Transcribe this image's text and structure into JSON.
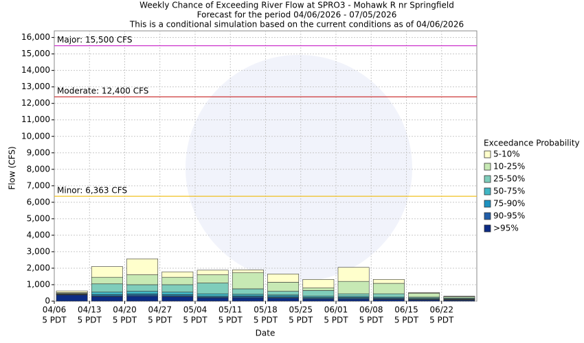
{
  "chart_data": {
    "type": "stacked_bar",
    "title": [
      "Weekly Chance of Exceeding River Flow at SPRO3 - Mohawk R nr Springfield",
      "Forecast for the period 04/06/2026 - 07/05/2026",
      "This is a conditional simulation based on the current conditions as of 04/06/2026"
    ],
    "xlabel": "Date",
    "ylabel": "Flow (CFS)",
    "categories": [
      "04/06",
      "04/13",
      "04/20",
      "04/27",
      "05/04",
      "05/11",
      "05/18",
      "05/25",
      "06/01",
      "06/08",
      "06/15",
      "06/22"
    ],
    "category_time": "5 PDT",
    "legend_title": "Exceedance Probability",
    "series": [
      {
        "name": ">95%",
        "color": "#0c2c84",
        "values": [
          380,
          280,
          300,
          270,
          200,
          200,
          180,
          130,
          130,
          110,
          80,
          60
        ]
      },
      {
        "name": "90-95%",
        "color": "#225ea8",
        "values": [
          20,
          50,
          80,
          60,
          50,
          60,
          50,
          50,
          50,
          40,
          30,
          30
        ]
      },
      {
        "name": "75-90%",
        "color": "#1d91c0",
        "values": [
          20,
          70,
          70,
          70,
          50,
          60,
          70,
          40,
          50,
          50,
          30,
          30
        ]
      },
      {
        "name": "50-75%",
        "color": "#41b6c4",
        "values": [
          20,
          150,
          150,
          150,
          150,
          100,
          80,
          80,
          70,
          50,
          40,
          30
        ]
      },
      {
        "name": "25-50%",
        "color": "#7fcdbb",
        "values": [
          30,
          500,
          400,
          450,
          650,
          330,
          220,
          350,
          150,
          200,
          70,
          50
        ]
      },
      {
        "name": "10-25%",
        "color": "#c7e9b4",
        "values": [
          50,
          400,
          600,
          450,
          500,
          970,
          550,
          150,
          750,
          630,
          230,
          70
        ]
      },
      {
        "name": "5-10%",
        "color": "#ffffcc",
        "values": [
          100,
          650,
          970,
          330,
          280,
          180,
          500,
          520,
          850,
          240,
          40,
          30
        ]
      }
    ],
    "thresholds": [
      {
        "label": "Major: 15,500 CFS",
        "value": 15500,
        "color": "#cc33cc"
      },
      {
        "label": "Moderate: 12,400 CFS",
        "value": 12400,
        "color": "#cc3333"
      },
      {
        "label": "Minor: 6,363 CFS",
        "value": 6363,
        "color": "#f0c020"
      }
    ],
    "ylim": [
      0,
      16400
    ],
    "yticks": [
      0,
      {
        "value": 1000,
        "label": "1,000"
      },
      {
        "value": 2000,
        "label": "2,000"
      },
      {
        "value": 3000,
        "label": "3,000"
      },
      {
        "value": 4000,
        "label": "4,000"
      },
      {
        "value": 5000,
        "label": "5,000"
      },
      {
        "value": 6000,
        "label": "6,000"
      },
      {
        "value": 7000,
        "label": "7,000"
      },
      {
        "value": 8000,
        "label": "8,000"
      },
      {
        "value": 9000,
        "label": "9,000"
      },
      {
        "value": 10000,
        "label": "10,000"
      },
      {
        "value": 11000,
        "label": "11,000"
      },
      {
        "value": 12000,
        "label": "12,000"
      },
      {
        "value": 13000,
        "label": "13,000"
      },
      {
        "value": 14000,
        "label": "14,000"
      },
      {
        "value": 15000,
        "label": "15,000"
      },
      {
        "value": 16000,
        "label": "16,000"
      }
    ],
    "grid": true
  }
}
